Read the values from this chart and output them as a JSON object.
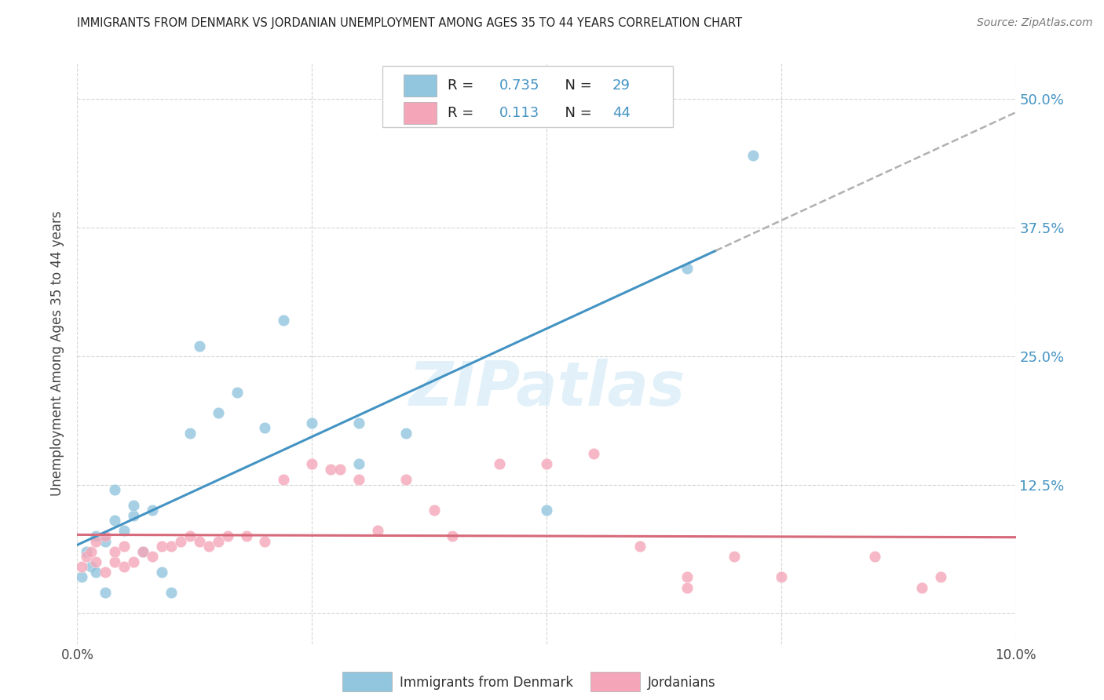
{
  "title": "IMMIGRANTS FROM DENMARK VS JORDANIAN UNEMPLOYMENT AMONG AGES 35 TO 44 YEARS CORRELATION CHART",
  "source": "Source: ZipAtlas.com",
  "ylabel": "Unemployment Among Ages 35 to 44 years",
  "xlim": [
    0.0,
    0.1
  ],
  "ylim": [
    -0.03,
    0.535
  ],
  "yticks": [
    0.0,
    0.125,
    0.25,
    0.375,
    0.5
  ],
  "ytick_labels": [
    "",
    "12.5%",
    "25.0%",
    "37.5%",
    "50.0%"
  ],
  "xticks": [
    0.0,
    0.025,
    0.05,
    0.075,
    0.1
  ],
  "blue_R": 0.735,
  "blue_N": 29,
  "pink_R": 0.113,
  "pink_N": 44,
  "blue_color": "#92c5de",
  "pink_color": "#f4a6b8",
  "blue_line_color": "#4393c3",
  "pink_line_color": "#d6697a",
  "dashed_line_color": "#b0b0b0",
  "watermark": "ZIPatlas",
  "blue_points_x": [
    0.0005,
    0.001,
    0.0015,
    0.002,
    0.002,
    0.003,
    0.003,
    0.004,
    0.004,
    0.005,
    0.006,
    0.006,
    0.007,
    0.008,
    0.009,
    0.01,
    0.012,
    0.013,
    0.015,
    0.017,
    0.02,
    0.022,
    0.025,
    0.03,
    0.03,
    0.035,
    0.05,
    0.065,
    0.072
  ],
  "blue_points_y": [
    0.035,
    0.06,
    0.045,
    0.075,
    0.04,
    0.07,
    0.02,
    0.09,
    0.12,
    0.08,
    0.095,
    0.105,
    0.06,
    0.1,
    0.04,
    0.02,
    0.175,
    0.26,
    0.195,
    0.215,
    0.18,
    0.285,
    0.185,
    0.185,
    0.145,
    0.175,
    0.1,
    0.335,
    0.445
  ],
  "pink_points_x": [
    0.0005,
    0.001,
    0.0015,
    0.002,
    0.002,
    0.003,
    0.003,
    0.004,
    0.004,
    0.005,
    0.005,
    0.006,
    0.007,
    0.008,
    0.009,
    0.01,
    0.011,
    0.012,
    0.013,
    0.014,
    0.015,
    0.016,
    0.018,
    0.02,
    0.022,
    0.025,
    0.027,
    0.028,
    0.03,
    0.032,
    0.035,
    0.038,
    0.04,
    0.045,
    0.05,
    0.055,
    0.06,
    0.065,
    0.065,
    0.07,
    0.075,
    0.085,
    0.09,
    0.092
  ],
  "pink_points_y": [
    0.045,
    0.055,
    0.06,
    0.05,
    0.07,
    0.04,
    0.075,
    0.05,
    0.06,
    0.045,
    0.065,
    0.05,
    0.06,
    0.055,
    0.065,
    0.065,
    0.07,
    0.075,
    0.07,
    0.065,
    0.07,
    0.075,
    0.075,
    0.07,
    0.13,
    0.145,
    0.14,
    0.14,
    0.13,
    0.08,
    0.13,
    0.1,
    0.075,
    0.145,
    0.145,
    0.155,
    0.065,
    0.035,
    0.025,
    0.055,
    0.035,
    0.055,
    0.025,
    0.035
  ],
  "background_color": "#ffffff",
  "grid_color": "#cccccc"
}
